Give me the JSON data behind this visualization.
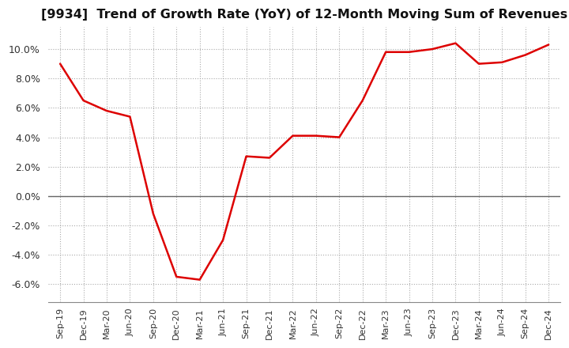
{
  "title": "[9934]  Trend of Growth Rate (YoY) of 12-Month Moving Sum of Revenues",
  "line_color": "#DD0000",
  "background_color": "#FFFFFF",
  "plot_bg_color": "#FFFFFF",
  "grid_color": "#AAAAAA",
  "zero_line_color": "#666666",
  "ylim": [
    -0.072,
    0.115
  ],
  "yticks": [
    -0.06,
    -0.04,
    -0.02,
    0.0,
    0.02,
    0.04,
    0.06,
    0.08,
    0.1
  ],
  "labels": [
    "Sep-19",
    "Dec-19",
    "Mar-20",
    "Jun-20",
    "Sep-20",
    "Dec-20",
    "Mar-21",
    "Jun-21",
    "Sep-21",
    "Dec-21",
    "Mar-22",
    "Jun-22",
    "Sep-22",
    "Dec-22",
    "Mar-23",
    "Jun-23",
    "Sep-23",
    "Dec-23",
    "Mar-24",
    "Jun-24",
    "Sep-24",
    "Dec-24"
  ],
  "values": [
    0.09,
    0.065,
    0.058,
    0.054,
    -0.012,
    -0.055,
    -0.057,
    -0.03,
    0.027,
    0.026,
    0.041,
    0.041,
    0.04,
    0.065,
    0.098,
    0.098,
    0.1,
    0.104,
    0.09,
    0.091,
    0.096,
    0.103
  ]
}
